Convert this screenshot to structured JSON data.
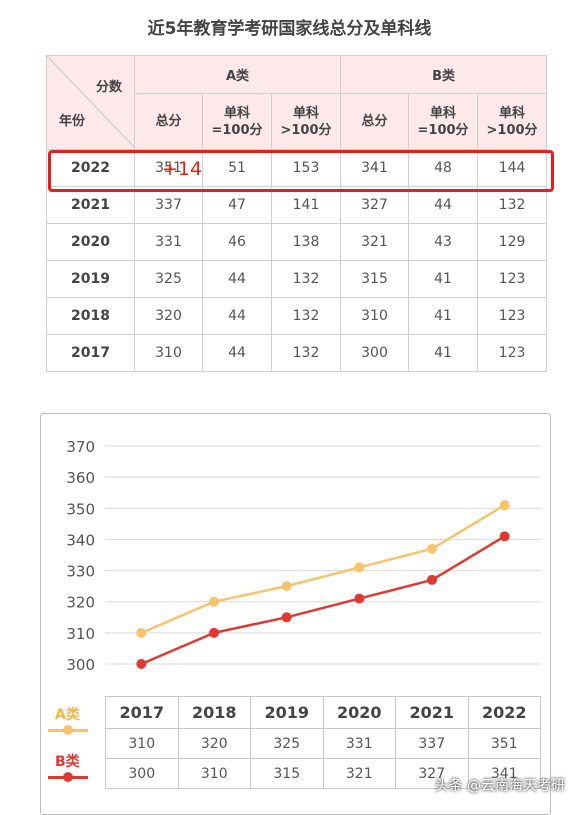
{
  "title": "近5年教育学考研国家线总分及单科线",
  "table": {
    "corner_top": "分数",
    "corner_bottom": "年份",
    "group_a": "A类",
    "group_b": "B类",
    "col_total": "总分",
    "col_single_100_l1": "单科",
    "col_single_100_l2": "=100分",
    "col_single_gt_l1": "单科",
    "col_single_gt_l2": ">100分",
    "rows": [
      {
        "year": "2022",
        "a_total": "351",
        "a_s100": "51",
        "a_sgt": "153",
        "b_total": "341",
        "b_s100": "48",
        "b_sgt": "144"
      },
      {
        "year": "2021",
        "a_total": "337",
        "a_s100": "47",
        "a_sgt": "141",
        "b_total": "327",
        "b_s100": "44",
        "b_sgt": "132"
      },
      {
        "year": "2020",
        "a_total": "331",
        "a_s100": "46",
        "a_sgt": "138",
        "b_total": "321",
        "b_s100": "43",
        "b_sgt": "129"
      },
      {
        "year": "2019",
        "a_total": "325",
        "a_s100": "44",
        "a_sgt": "132",
        "b_total": "315",
        "b_s100": "41",
        "b_sgt": "123"
      },
      {
        "year": "2018",
        "a_total": "320",
        "a_s100": "44",
        "a_sgt": "132",
        "b_total": "310",
        "b_s100": "41",
        "b_sgt": "123"
      },
      {
        "year": "2017",
        "a_total": "310",
        "a_s100": "44",
        "a_sgt": "132",
        "b_total": "300",
        "b_s100": "41",
        "b_sgt": "123"
      }
    ],
    "highlight_note": "+14"
  },
  "chart_data": {
    "type": "line",
    "categories": [
      "2017",
      "2018",
      "2019",
      "2020",
      "2021",
      "2022"
    ],
    "series": [
      {
        "name": "A类",
        "values": [
          310,
          320,
          325,
          331,
          337,
          351
        ],
        "color": "#f7c46c"
      },
      {
        "name": "B类",
        "values": [
          300,
          310,
          315,
          321,
          327,
          341
        ],
        "color": "#dc3b33"
      }
    ],
    "ylim": [
      300,
      370
    ],
    "yticks": [
      300,
      310,
      320,
      330,
      340,
      350,
      360,
      370
    ],
    "grid": true,
    "legend": "bottom-left",
    "title": "",
    "xlabel": "",
    "ylabel": ""
  },
  "colors": {
    "header_bg": "#fde9e9",
    "highlight": "#e0201c",
    "series_a": "#f7c46c",
    "series_b": "#dc3b33",
    "legend_a_text": "#f5b545",
    "legend_b_text": "#dc3b33"
  },
  "watermark": "头条 @云南海天考研"
}
